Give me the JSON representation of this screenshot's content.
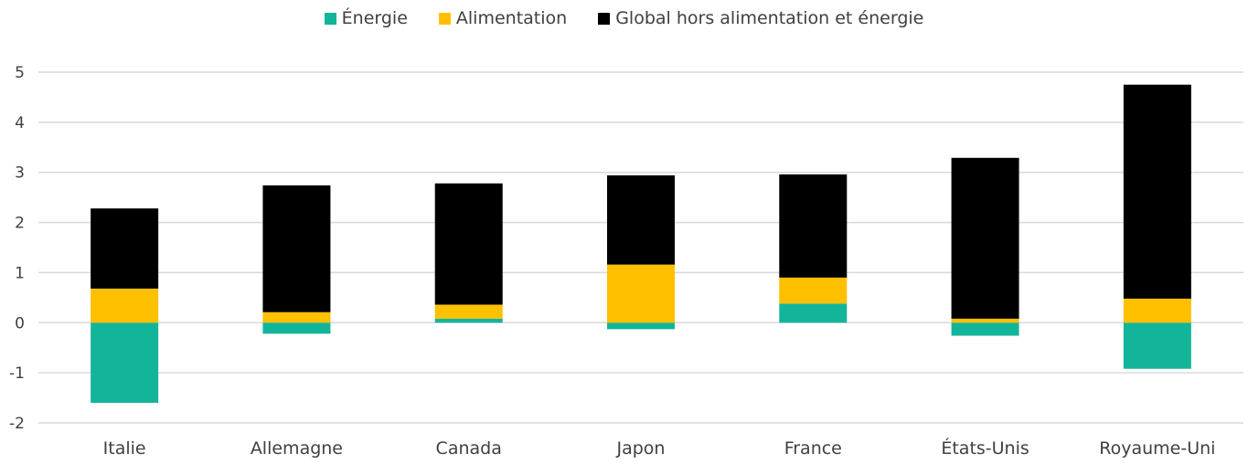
{
  "chart_data": {
    "type": "bar",
    "stacked": true,
    "categories": [
      "Italie",
      "Allemagne",
      "Canada",
      "Japon",
      "France",
      "États-Unis",
      "Royaume-Uni"
    ],
    "series": [
      {
        "name": "Énergie",
        "color": "#12b59a",
        "values": [
          -1.6,
          -0.22,
          0.08,
          -0.13,
          0.38,
          -0.26,
          -0.92
        ]
      },
      {
        "name": "Alimentation",
        "color": "#ffc000",
        "values": [
          0.68,
          0.21,
          0.28,
          1.16,
          0.52,
          0.08,
          0.48
        ]
      },
      {
        "name": "Global hors alimentation et énergie",
        "color": "#000000",
        "values": [
          1.6,
          2.53,
          2.42,
          1.78,
          2.06,
          3.21,
          4.27
        ]
      }
    ],
    "yticks": [
      "-2",
      "-1",
      "0",
      "1",
      "2",
      "3",
      "4",
      "5"
    ],
    "ylim": [
      -2,
      5
    ],
    "grid": true,
    "legend_position": "top"
  }
}
